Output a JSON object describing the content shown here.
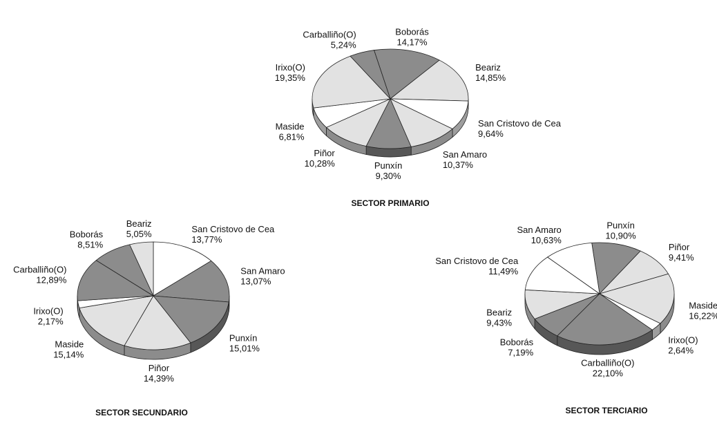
{
  "chart_data": [
    {
      "type": "pie",
      "title": "SECTOR PRIMARIO",
      "categories": [
        "Boborás",
        "Beariz",
        "San Cristovo de Cea",
        "San Amaro",
        "Punxín",
        "Piñor",
        "Maside",
        "Irixo(O)",
        "Carballiño(O)"
      ],
      "values": [
        14.17,
        14.85,
        9.64,
        10.37,
        9.3,
        10.28,
        6.81,
        19.35,
        5.24
      ],
      "value_labels": [
        "14,17%",
        "14,85%",
        "9,64%",
        "10,37%",
        "9,30%",
        "10,28%",
        "6,81%",
        "19,35%",
        "5,24%"
      ],
      "colors": [
        "#8c8c8c",
        "#e2e2e2",
        "#ffffff",
        "#e2e2e2",
        "#8c8c8c",
        "#e2e2e2",
        "#ffffff",
        "#e2e2e2",
        "#8c8c8c"
      ]
    },
    {
      "type": "pie",
      "title": "SECTOR SECUNDARIO",
      "categories": [
        "San Cristovo de Cea",
        "San Amaro",
        "Punxín",
        "Piñor",
        "Maside",
        "Irixo(O)",
        "Carballiño(O)",
        "Boborás",
        "Beariz"
      ],
      "values": [
        13.77,
        13.07,
        15.01,
        14.39,
        15.14,
        2.17,
        12.89,
        8.51,
        5.05
      ],
      "value_labels": [
        "13,77%",
        "13,07%",
        "15,01%",
        "14,39%",
        "15,14%",
        "2,17%",
        "12,89%",
        "8,51%",
        "5,05%"
      ],
      "colors": [
        "#ffffff",
        "#8c8c8c",
        "#8c8c8c",
        "#e2e2e2",
        "#e2e2e2",
        "#ffffff",
        "#8c8c8c",
        "#8c8c8c",
        "#e2e2e2"
      ]
    },
    {
      "type": "pie",
      "title": "SECTOR TERCIARIO",
      "categories": [
        "Punxín",
        "Piñor",
        "Maside",
        "Irixo(O)",
        "Carballiño(O)",
        "Boborás",
        "Beariz",
        "San Cristovo de Cea",
        "San Amaro"
      ],
      "values": [
        10.9,
        9.41,
        16.22,
        2.64,
        22.1,
        7.19,
        9.43,
        11.49,
        10.63
      ],
      "value_labels": [
        "10,90%",
        "9,41%",
        "16,22%",
        "2,64%",
        "22,10%",
        "7,19%",
        "9,43%",
        "11,49%",
        "10,63%"
      ],
      "colors": [
        "#8c8c8c",
        "#e2e2e2",
        "#e2e2e2",
        "#ffffff",
        "#8c8c8c",
        "#8c8c8c",
        "#e2e2e2",
        "#ffffff",
        "#ffffff"
      ]
    }
  ]
}
